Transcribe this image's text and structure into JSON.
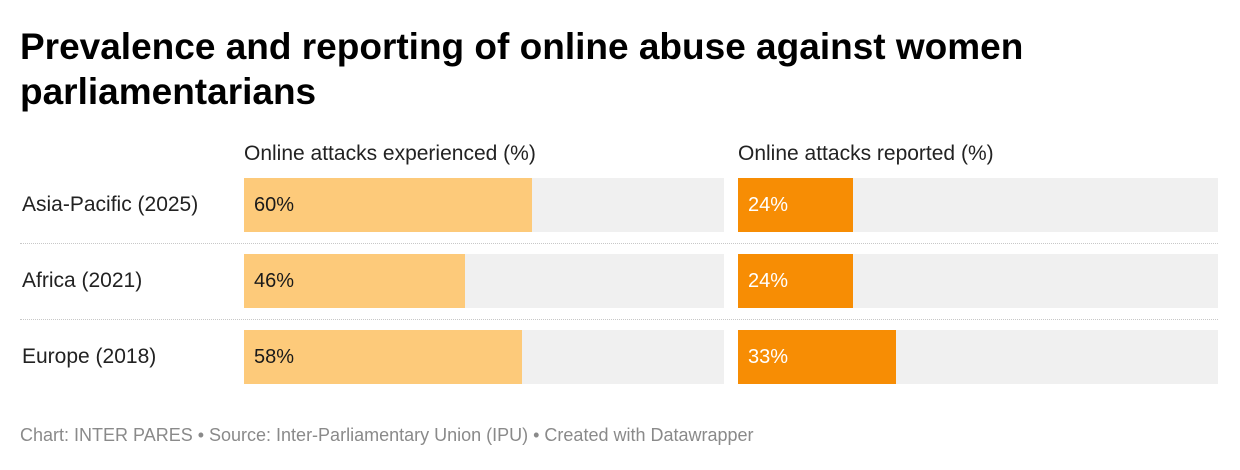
{
  "title": "Prevalence and reporting of online abuse against women parliamentarians",
  "footer": "Chart: INTER PARES • Source: Inter-Parliamentary Union (IPU) • Created with Datawrapper",
  "colors": {
    "experienced": "#fdca7a",
    "reported": "#f78d04",
    "track": "#f0f0f0"
  },
  "chart_data": {
    "type": "bar",
    "orientation": "horizontal",
    "title": "Prevalence and reporting of online abuse against women parliamentarians",
    "categories": [
      "Asia-Pacific (2025)",
      "Africa (2021)",
      "Europe (2018)"
    ],
    "series": [
      {
        "name": "Online attacks experienced (%)",
        "values": [
          60,
          46,
          58
        ],
        "labels": [
          "60%",
          "46%",
          "58%"
        ],
        "color": "#fdca7a"
      },
      {
        "name": "Online attacks reported (%)",
        "values": [
          24,
          24,
          33
        ],
        "labels": [
          "24%",
          "24%",
          "33%"
        ],
        "color": "#f78d04"
      }
    ],
    "xlim": [
      0,
      100
    ],
    "grid": false,
    "legend": "column headers"
  }
}
